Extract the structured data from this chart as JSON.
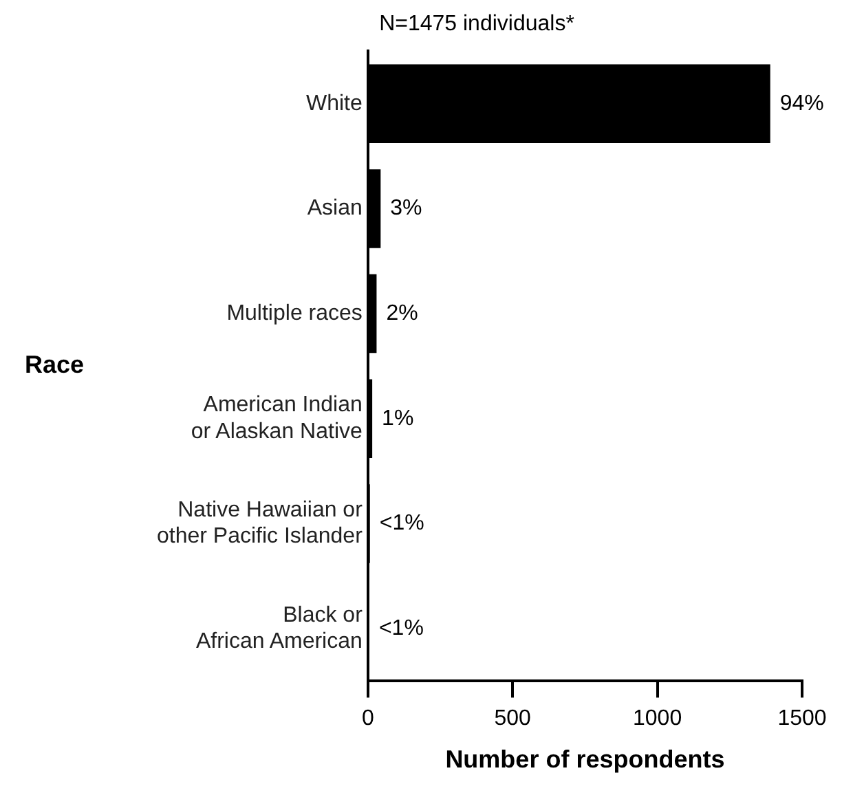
{
  "chart_data": {
    "type": "bar",
    "orientation": "horizontal",
    "title": "N=1475 individuals*",
    "xlabel": "Number of respondents",
    "ylabel": "Race",
    "categories": [
      "White",
      "Asian",
      "Multiple races",
      "American Indian\nor Alaskan Native",
      "Native Hawaiian or\nother Pacific Islander",
      "Black or\nAfrican American"
    ],
    "values": [
      1390,
      44,
      30,
      15,
      7,
      5
    ],
    "annotations": [
      {
        "text": "94%",
        "x": 1390,
        "y": "White"
      },
      {
        "text": "3%",
        "x": 44,
        "y": "Asian"
      },
      {
        "text": "2%",
        "x": 30,
        "y": "Multiple races"
      },
      {
        "text": "1%",
        "x": 15,
        "y": "American Indian\nor Alaskan Native"
      },
      {
        "text": "<1%",
        "x": 7,
        "y": "Native Hawaiian or\nother Pacific Islander"
      },
      {
        "text": "<1%",
        "x": 5,
        "y": "Black or\nAfrican American"
      }
    ],
    "color": "#000000",
    "xlim": [
      0,
      1500
    ],
    "xticks": [
      0,
      500,
      1000,
      1500
    ],
    "grid": false,
    "legend": false
  }
}
